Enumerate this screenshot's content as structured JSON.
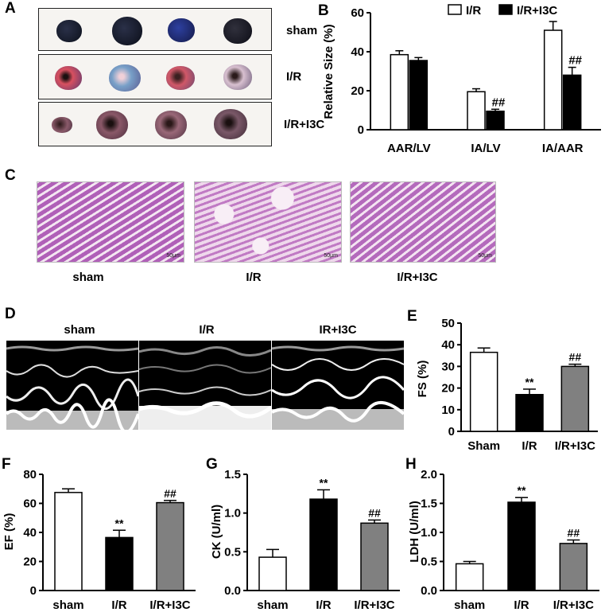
{
  "panelA": {
    "letter": "A",
    "rows": [
      {
        "label": "sham"
      },
      {
        "label": "I/R"
      },
      {
        "label": "I/R+I3C"
      }
    ]
  },
  "panelC": {
    "letter": "C",
    "images": [
      {
        "label": "sham",
        "scale": "50μm"
      },
      {
        "label": "I/R",
        "scale": "50μm"
      },
      {
        "label": "I/R+I3C",
        "scale": "50μm"
      }
    ]
  },
  "panelD": {
    "letter": "D",
    "images": [
      {
        "label": "sham"
      },
      {
        "label": "I/R"
      },
      {
        "label": "IR+I3C"
      }
    ]
  },
  "colors": {
    "white": "#ffffff",
    "black": "#000000",
    "gray": "#808080"
  },
  "chart_data": [
    {
      "id": "B",
      "letter": "B",
      "type": "bar",
      "ylabel": "Relative Size (%)",
      "ylim": [
        0,
        60
      ],
      "yticks": [
        0,
        20,
        40,
        60
      ],
      "categories": [
        "AAR/LV",
        "IA/LV",
        "IA/AAR"
      ],
      "legend": "top",
      "series": [
        {
          "name": "I/R",
          "color": "#ffffff",
          "values": [
            38.5,
            19.5,
            51
          ],
          "errors": [
            2,
            1.5,
            4.5
          ],
          "marks": [
            "",
            "",
            ""
          ]
        },
        {
          "name": "I/R+I3C",
          "color": "#000000",
          "values": [
            35.5,
            9.5,
            28
          ],
          "errors": [
            1.5,
            1,
            4
          ],
          "marks": [
            "",
            "##",
            "##"
          ]
        }
      ]
    },
    {
      "id": "E",
      "letter": "E",
      "type": "bar",
      "ylabel": "FS (%)",
      "ylim": [
        0,
        50
      ],
      "yticks": [
        0,
        10,
        20,
        30,
        40,
        50
      ],
      "categories": [
        "Sham",
        "I/R",
        "I/R+I3C"
      ],
      "colors": [
        "#ffffff",
        "#000000",
        "#808080"
      ],
      "values": [
        36.5,
        17,
        30
      ],
      "errors": [
        2,
        2.5,
        1
      ],
      "marks": [
        "",
        "**",
        "##"
      ]
    },
    {
      "id": "F",
      "letter": "F",
      "type": "bar",
      "ylabel": "EF (%)",
      "ylim": [
        0,
        80
      ],
      "yticks": [
        0,
        20,
        40,
        60,
        80
      ],
      "categories": [
        "sham",
        "I/R",
        "I/R+I3C"
      ],
      "colors": [
        "#ffffff",
        "#000000",
        "#808080"
      ],
      "values": [
        67.5,
        36.5,
        60.5
      ],
      "errors": [
        2.5,
        5,
        1.5
      ],
      "marks": [
        "",
        "**",
        "##"
      ]
    },
    {
      "id": "G",
      "letter": "G",
      "type": "bar",
      "ylabel": "CK (U/ml)",
      "ylim": [
        0,
        1.5
      ],
      "yticks": [
        0.0,
        0.5,
        1.0,
        1.5
      ],
      "ytickLabels": [
        "0.0",
        "0.5",
        "1.0",
        "1.5"
      ],
      "categories": [
        "sham",
        "I/R",
        "I/R+I3C"
      ],
      "colors": [
        "#ffffff",
        "#000000",
        "#808080"
      ],
      "values": [
        0.43,
        1.18,
        0.87
      ],
      "errors": [
        0.1,
        0.12,
        0.04
      ],
      "marks": [
        "",
        "**",
        "##"
      ]
    },
    {
      "id": "H",
      "letter": "H",
      "type": "bar",
      "ylabel": "LDH (U/ml)",
      "ylim": [
        0,
        2.0
      ],
      "yticks": [
        0.0,
        0.5,
        1.0,
        1.5,
        2.0
      ],
      "ytickLabels": [
        "0.0",
        "0.5",
        "1.0",
        "1.5",
        "2.0"
      ],
      "categories": [
        "sham",
        "I/R",
        "I/R+I3C"
      ],
      "colors": [
        "#ffffff",
        "#000000",
        "#808080"
      ],
      "values": [
        0.46,
        1.52,
        0.81
      ],
      "errors": [
        0.04,
        0.08,
        0.06
      ],
      "marks": [
        "",
        "**",
        "##"
      ]
    }
  ]
}
